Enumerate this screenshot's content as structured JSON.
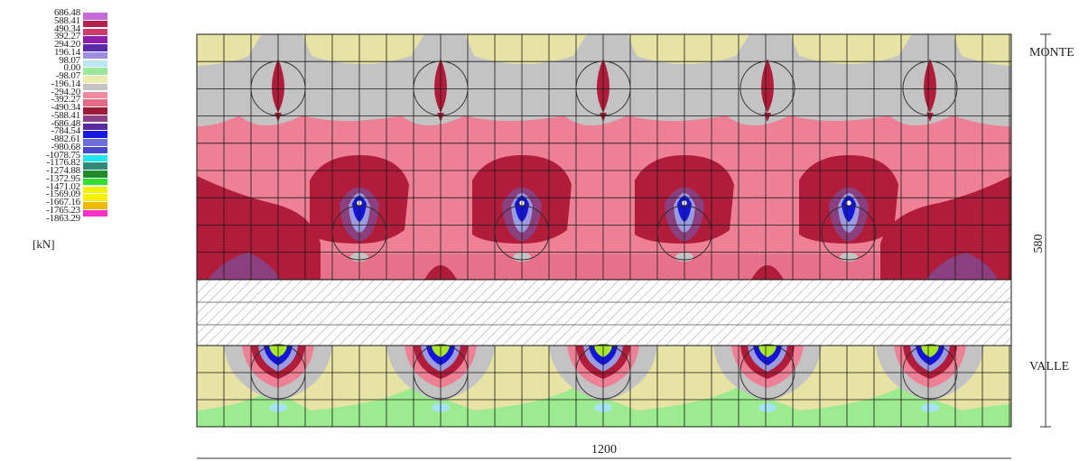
{
  "legend": {
    "unit": "[kN]",
    "values": [
      "686.48",
      "588.41",
      "490.34",
      "392.27",
      "294.20",
      "196.14",
      "98.07",
      "0.00",
      "-98.07",
      "-196.14",
      "-294.20",
      "-392.27",
      "-490.34",
      "-588.41",
      "-686.48",
      "-784.54",
      "-882.61",
      "-980.68",
      "-1078.75",
      "-1176.82",
      "-1274.88",
      "-1372.95",
      "-1471.02",
      "-1569.09",
      "-1667.16",
      "-1765.23",
      "-1863.29"
    ],
    "colors": [
      "#c56bd9",
      "#b2204b",
      "#cf3a6a",
      "#8e1fa8",
      "#5b2aa8",
      "#9d8fe0",
      "#b9e7f2",
      "#9be89b",
      "#ecebb0",
      "#c3c3c3",
      "#f08aa0",
      "#e46b86",
      "#9a1c38",
      "#8e3f86",
      "#5a2a9a",
      "#1818e0",
      "#6f6fd8",
      "#4848c8",
      "#20e8f0",
      "#2f8a7a",
      "#1e8b2a",
      "#30e030",
      "#f2f200",
      "#f8f000",
      "#f0b800",
      "#ff30c8",
      "#ff1818"
    ]
  },
  "diagram": {
    "colors": {
      "bg_neutral": "#e7e3a5",
      "gray": "#c3c3c3",
      "pink": "#ee8096",
      "dark_red": "#b01c3a",
      "purple": "#8b3f7e",
      "blue": "#1414d8",
      "light_blue": "#9b9be0",
      "green": "#9ceb8f",
      "cyan": "#a6e4f4",
      "yellow_green": "#a8e62a"
    },
    "label_top": "MONTE",
    "label_bottom": "VALLE",
    "dim_width": "1200",
    "dim_height": "580"
  }
}
